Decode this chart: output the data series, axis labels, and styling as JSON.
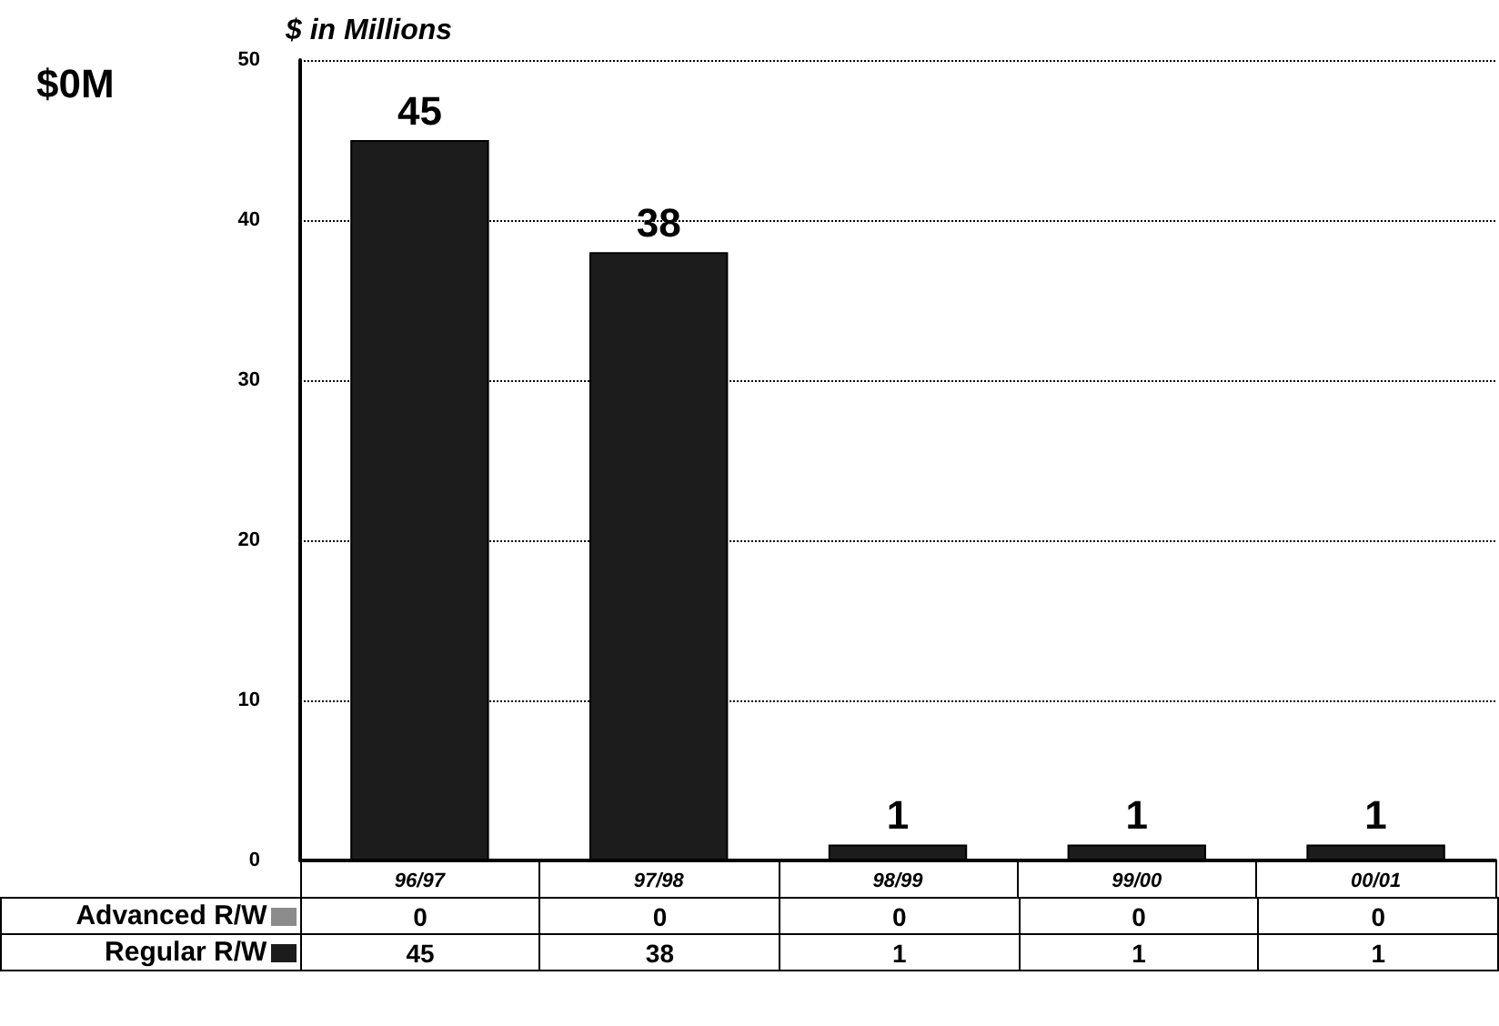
{
  "chart_data": {
    "type": "bar",
    "ylabel": "$ in Millions",
    "annotations": [
      "$0M"
    ],
    "categories": [
      "96/97",
      "97/98",
      "98/99",
      "99/00",
      "00/01"
    ],
    "stacked": true,
    "series": [
      {
        "name": "Advanced R/W",
        "color": "#8c8c8c",
        "values": [
          0,
          0,
          0,
          0,
          0
        ]
      },
      {
        "name": "Regular R/W",
        "color": "#1c1c1c",
        "values": [
          45,
          38,
          1,
          1,
          1
        ]
      }
    ],
    "totals": [
      "45",
      "38",
      "1",
      "1",
      "1"
    ],
    "ylim": [
      0,
      50
    ],
    "yticks": [
      0,
      10,
      20,
      30,
      40,
      50
    ],
    "grid": "y",
    "legend": "bottom left",
    "data_labels": true
  }
}
